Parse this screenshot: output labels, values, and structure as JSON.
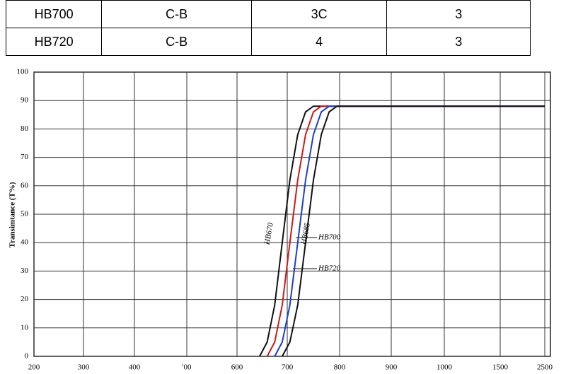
{
  "table": {
    "rows": [
      [
        "HB700",
        "C-B",
        "3C",
        "3"
      ],
      [
        "HB720",
        "C-B",
        "4",
        "3"
      ]
    ]
  },
  "chart_data": {
    "type": "line",
    "y_label": "Transimtance (T%)",
    "xticks": [
      200,
      300,
      400,
      {
        "value": 500,
        "label": "'00"
      },
      600,
      700,
      800,
      900,
      1000,
      1500,
      2500
    ],
    "xlim": [
      200,
      2500
    ],
    "ylim": [
      0,
      100
    ],
    "yticks": [
      0,
      10,
      20,
      30,
      40,
      50,
      60,
      70,
      80,
      90,
      100
    ],
    "grid": true,
    "series": [
      {
        "name": "HB670",
        "color": "#111111",
        "x": [
          645,
          660,
          675,
          690,
          705,
          720,
          735,
          750,
          800,
          1000,
          2500
        ],
        "values": [
          0,
          5,
          18,
          40,
          62,
          78,
          86,
          88,
          88,
          88,
          88
        ]
      },
      {
        "name": "HB685",
        "color": "#d01818",
        "x": [
          660,
          675,
          690,
          705,
          720,
          735,
          750,
          765,
          800,
          1000,
          2500
        ],
        "values": [
          0,
          5,
          18,
          40,
          62,
          78,
          86,
          88,
          88,
          88,
          88
        ]
      },
      {
        "name": "HB700",
        "color": "#1a3fd0",
        "x": [
          675,
          690,
          705,
          720,
          735,
          750,
          765,
          780,
          800,
          1000,
          2500
        ],
        "values": [
          0,
          5,
          18,
          40,
          62,
          78,
          86,
          88,
          88,
          88,
          88
        ]
      },
      {
        "name": "HB720",
        "color": "#111111",
        "x": [
          690,
          705,
          720,
          735,
          750,
          765,
          780,
          795,
          820,
          1000,
          2500
        ],
        "values": [
          0,
          5,
          18,
          40,
          62,
          78,
          86,
          88,
          88,
          88,
          88
        ]
      }
    ]
  }
}
